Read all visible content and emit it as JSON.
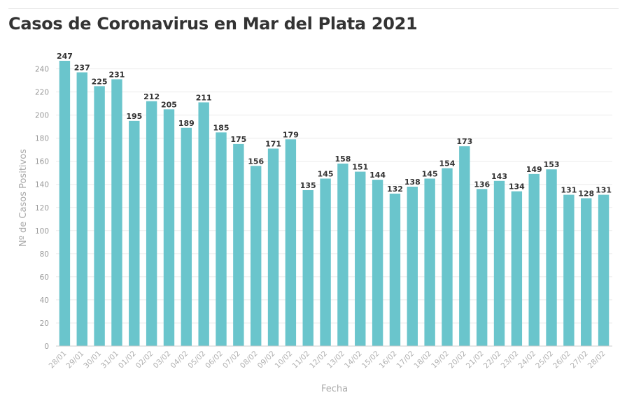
{
  "chart_data": {
    "type": "bar",
    "title": "Casos de Coronavirus en Mar del Plata 2021",
    "xlabel": "Fecha",
    "ylabel": "Nº de Casos Positivos",
    "ylim": [
      0,
      250
    ],
    "yticks": [
      0,
      20,
      40,
      60,
      80,
      100,
      120,
      140,
      160,
      180,
      200,
      220,
      240
    ],
    "grid": true,
    "bar_color": "#6ac5cc",
    "categories": [
      "28/01",
      "29/01",
      "30/01",
      "31/01",
      "01/02",
      "02/02",
      "03/02",
      "04/02",
      "05/02",
      "06/02",
      "07/02",
      "08/02",
      "09/02",
      "10/02",
      "11/02",
      "12/02",
      "13/02",
      "14/02",
      "15/02",
      "16/02",
      "17/02",
      "18/02",
      "19/02",
      "20/02",
      "21/02",
      "22/02",
      "23/02",
      "24/02",
      "25/02",
      "26/02",
      "27/02",
      "28/02"
    ],
    "values": [
      247,
      237,
      225,
      231,
      195,
      212,
      205,
      189,
      211,
      185,
      175,
      156,
      171,
      179,
      135,
      145,
      158,
      151,
      144,
      132,
      138,
      145,
      154,
      173,
      136,
      143,
      134,
      149,
      153,
      131,
      128,
      131
    ]
  }
}
